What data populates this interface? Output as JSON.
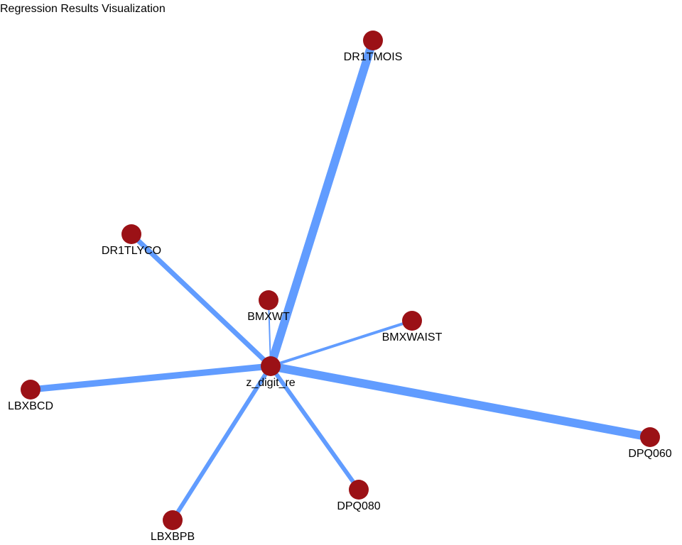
{
  "title": "Regression Results Visualization",
  "colors": {
    "edge": "#619CFF",
    "node": "#9B1116",
    "label": "#000000"
  },
  "nodes": [
    {
      "id": "z_digit_re",
      "label": "z_digit_re"
    },
    {
      "id": "DR1TMOIS",
      "label": "DR1TMOIS"
    },
    {
      "id": "DR1TLYCO",
      "label": "DR1TLYCO"
    },
    {
      "id": "BMXWT",
      "label": "BMXWT"
    },
    {
      "id": "BMXWAIST",
      "label": "BMXWAIST"
    },
    {
      "id": "LBXBCD",
      "label": "LBXBCD"
    },
    {
      "id": "DPQ060",
      "label": "DPQ060"
    },
    {
      "id": "DPQ080",
      "label": "DPQ080"
    },
    {
      "id": "LBXBPB",
      "label": "LBXBPB"
    }
  ],
  "edges": [
    {
      "source": "z_digit_re",
      "target": "DR1TMOIS"
    },
    {
      "source": "z_digit_re",
      "target": "DR1TLYCO"
    },
    {
      "source": "z_digit_re",
      "target": "BMXWT"
    },
    {
      "source": "z_digit_re",
      "target": "BMXWAIST"
    },
    {
      "source": "z_digit_re",
      "target": "LBXBCD"
    },
    {
      "source": "z_digit_re",
      "target": "DPQ060"
    },
    {
      "source": "z_digit_re",
      "target": "DPQ080"
    },
    {
      "source": "z_digit_re",
      "target": "LBXBPB"
    }
  ]
}
